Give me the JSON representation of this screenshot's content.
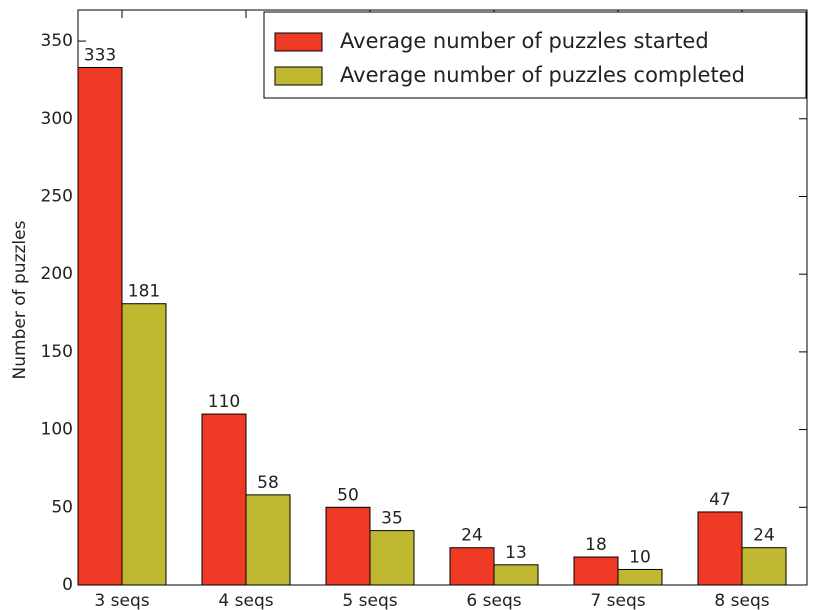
{
  "chart_data": {
    "type": "bar",
    "y_label": "Number of puzzles",
    "categories": [
      "3 seqs",
      "4 seqs",
      "5 seqs",
      "6 seqs",
      "7 seqs",
      "8 seqs"
    ],
    "series": [
      {
        "name": "Average number of puzzles started",
        "color": "#ee3a24",
        "values": [
          333,
          110,
          50,
          24,
          18,
          47
        ]
      },
      {
        "name": "Average number of puzzles completed",
        "color": "#c0b830",
        "values": [
          181,
          58,
          35,
          13,
          10,
          24
        ]
      }
    ],
    "ylim": [
      0,
      370
    ],
    "yticks": [
      0,
      50,
      100,
      150,
      200,
      250,
      300,
      350
    ],
    "legend": "upper right"
  }
}
